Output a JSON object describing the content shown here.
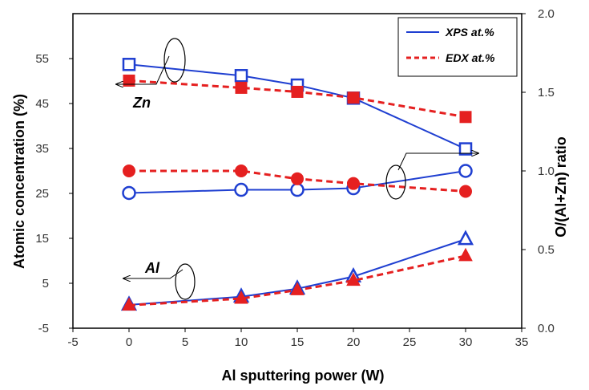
{
  "chart_data": {
    "type": "line",
    "xlabel": "Al sputtering  power (W)",
    "ylabel": "Atomic concentration (%)",
    "y2label": "O/(Al+Zn) ratio",
    "xlim": [
      -5,
      35
    ],
    "ylim": [
      -5,
      65
    ],
    "y2lim": [
      0,
      2
    ],
    "xticks": [
      "-5",
      "0",
      "5",
      "10",
      "15",
      "20",
      "25",
      "30",
      "35"
    ],
    "yticks": [
      "-5",
      "5",
      "15",
      "25",
      "35",
      "45",
      "55"
    ],
    "y2ticks": [
      "0.0",
      "0.5",
      "1.0",
      "1.5",
      "2.0"
    ],
    "legend": [
      {
        "label": "XPS at.%",
        "color": "#1f3fd1",
        "style": "solid"
      },
      {
        "label": "EDX at.%",
        "color": "#e52020",
        "style": "dashed"
      }
    ],
    "legend_position": "top-right",
    "annotations": [
      "Zn",
      "Al"
    ],
    "series": [
      {
        "method": "XPS",
        "element": "Zn",
        "axis": "left",
        "marker": "open-square",
        "color": "#1f3fd1",
        "dash": false,
        "x": [
          0,
          10,
          15,
          20,
          30
        ],
        "y": [
          53.7,
          51.2,
          49.1,
          46.2,
          34.9
        ]
      },
      {
        "method": "EDX",
        "element": "Zn",
        "axis": "left",
        "marker": "filled-square",
        "color": "#e52020",
        "dash": true,
        "x": [
          0,
          10,
          15,
          20,
          30
        ],
        "y": [
          50.1,
          48.5,
          47.6,
          46.3,
          42.0
        ]
      },
      {
        "method": "XPS",
        "element": "Al",
        "axis": "left",
        "marker": "open-triangle",
        "color": "#1f3fd1",
        "dash": false,
        "x": [
          0,
          10,
          15,
          20,
          30
        ],
        "y": [
          0.2,
          2.0,
          3.8,
          6.5,
          14.8
        ]
      },
      {
        "method": "EDX",
        "element": "Al",
        "axis": "left",
        "marker": "filled-triangle",
        "color": "#e52020",
        "dash": true,
        "x": [
          0,
          10,
          15,
          20,
          30
        ],
        "y": [
          0.1,
          1.6,
          3.5,
          5.6,
          11.1
        ]
      },
      {
        "method": "XPS",
        "element": "O/(Al+Zn)",
        "axis": "right",
        "marker": "open-circle",
        "color": "#1f3fd1",
        "dash": false,
        "x": [
          0,
          10,
          15,
          20,
          30
        ],
        "y": [
          0.86,
          0.88,
          0.88,
          0.89,
          1.0
        ]
      },
      {
        "method": "EDX",
        "element": "O/(Al+Zn)",
        "axis": "right",
        "marker": "filled-circle",
        "color": "#e52020",
        "dash": true,
        "x": [
          0,
          10,
          15,
          20,
          30
        ],
        "y": [
          1.0,
          1.0,
          0.95,
          0.92,
          0.87
        ]
      }
    ]
  }
}
